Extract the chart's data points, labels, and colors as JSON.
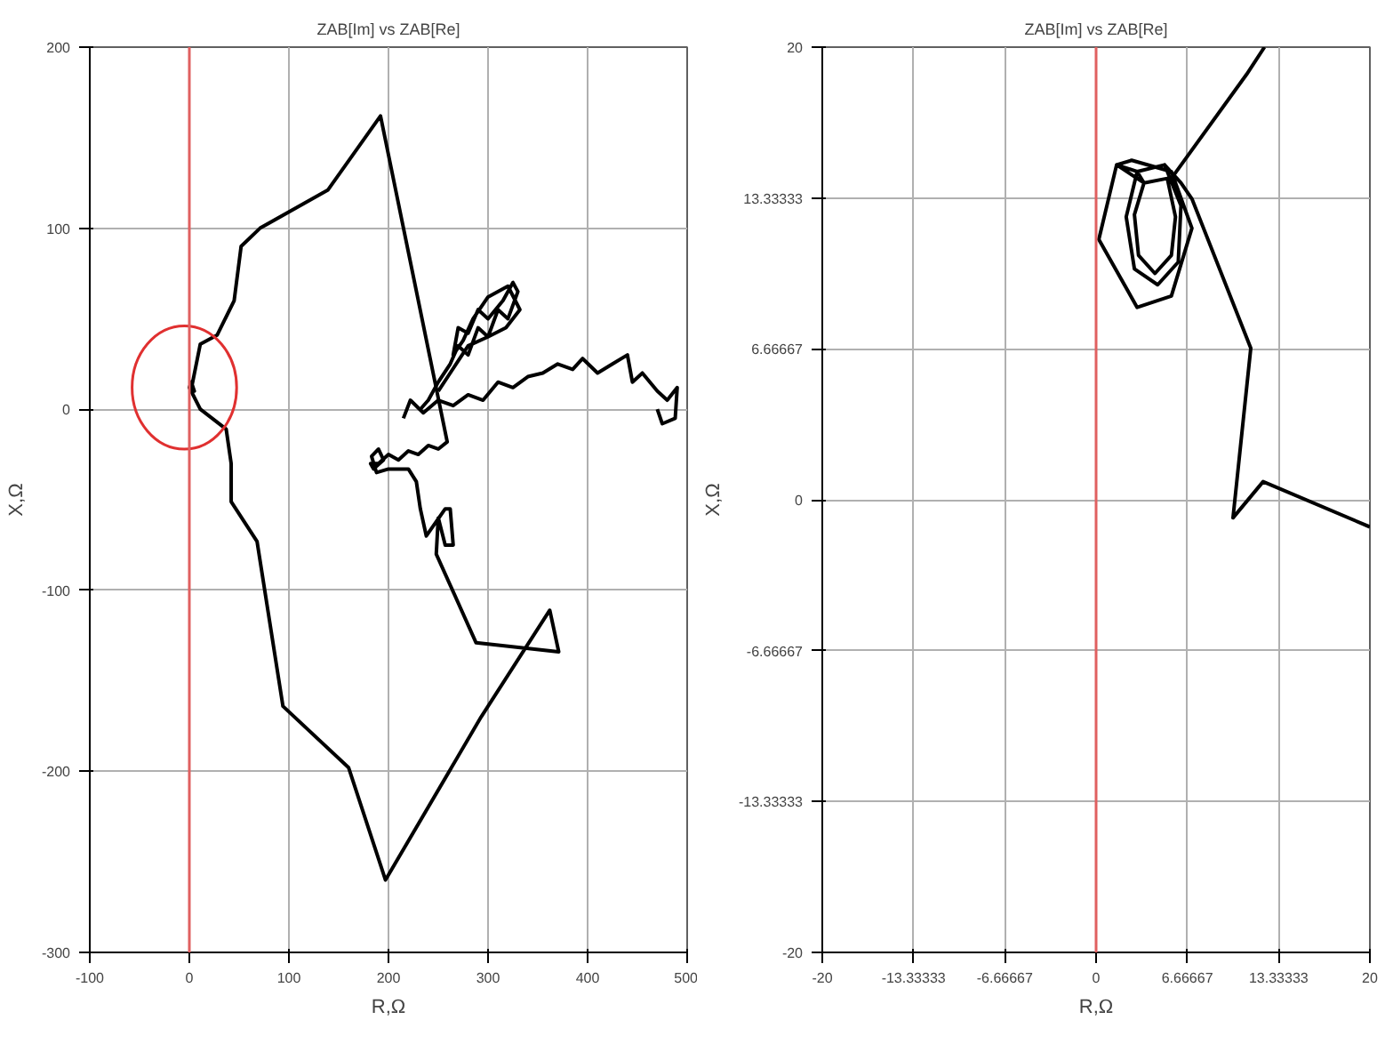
{
  "chart_data": [
    {
      "type": "line",
      "title": "ZAB[Im] vs ZAB[Re]",
      "xlabel": "R,Ω",
      "ylabel": "X,Ω",
      "xlim": [
        -100,
        500
      ],
      "ylim": [
        -300,
        200
      ],
      "xticks": [
        -100,
        0,
        100,
        200,
        300,
        400,
        500
      ],
      "yticks": [
        -300,
        -200,
        -100,
        0,
        100,
        200
      ],
      "grid": true,
      "ref_lines": [
        {
          "axis": "x",
          "value": 0,
          "color": "#e06060"
        }
      ],
      "series": [
        {
          "color": "#000000",
          "x": [
            0,
            3,
            11,
            28,
            45,
            52,
            71,
            139,
            192,
            259,
            250,
            240,
            230,
            220,
            210,
            200,
            190,
            182,
            185,
            195,
            190,
            183,
            188,
            200,
            220,
            228,
            232,
            238,
            257,
            262,
            265,
            257,
            250,
            248,
            288,
            371,
            362,
            293,
            197,
            160,
            94,
            68,
            42,
            42,
            37,
            11,
            0,
            2,
            5,
            1
          ],
          "values": [
            12,
            14,
            36,
            41,
            60,
            90,
            100,
            121,
            162,
            -18,
            -22,
            -20,
            -25,
            -23,
            -28,
            -25,
            -30,
            -30,
            -33,
            -28,
            -22,
            -26,
            -35,
            -33,
            -33,
            -40,
            -55,
            -70,
            -55,
            -55,
            -75,
            -75,
            -60,
            -80,
            -129,
            -134,
            -111,
            -170,
            -260,
            -198,
            -164,
            -73,
            -51,
            -30,
            -11,
            0,
            12,
            15,
            10,
            12
          ]
        },
        {
          "color": "#000000",
          "x": [
            215,
            222,
            235,
            250,
            265,
            280,
            295,
            310,
            325,
            340,
            355,
            370,
            385,
            395,
            410,
            425,
            440,
            445,
            455,
            470,
            480,
            490,
            488,
            475,
            470
          ],
          "values": [
            -5,
            5,
            -2,
            5,
            2,
            8,
            5,
            15,
            12,
            18,
            20,
            25,
            22,
            28,
            20,
            25,
            30,
            15,
            20,
            10,
            5,
            12,
            -5,
            -8,
            0
          ]
        },
        {
          "color": "#000000",
          "x": [
            232,
            240,
            250,
            262,
            270,
            280,
            290,
            300,
            310,
            320,
            330,
            325,
            315,
            300,
            290,
            280,
            270,
            265,
            275,
            285,
            300,
            320,
            332,
            318,
            300,
            280,
            262,
            250
          ],
          "values": [
            0,
            5,
            15,
            25,
            35,
            30,
            45,
            40,
            55,
            50,
            65,
            70,
            60,
            50,
            55,
            42,
            45,
            30,
            38,
            50,
            62,
            68,
            55,
            45,
            40,
            35,
            20,
            10
          ]
        }
      ]
    },
    {
      "type": "line",
      "title": "ZAB[Im] vs ZAB[Re]",
      "xlabel": "R,Ω",
      "ylabel": "X,Ω",
      "xlim": [
        -20,
        20
      ],
      "ylim": [
        -20,
        20
      ],
      "xticks": [
        -20,
        -13.33333,
        -6.66667,
        0,
        6.66667,
        13.33333,
        20
      ],
      "yticks": [
        -20,
        -13.33333,
        -6.66667,
        0,
        6.66667,
        13.33333,
        20
      ],
      "grid": true,
      "ref_lines": [
        {
          "axis": "x",
          "value": 0,
          "color": "#e06060"
        }
      ],
      "series": [
        {
          "color": "#000000",
          "x": [
            3,
            5,
            6.2,
            6,
            4.5,
            2.8,
            2.2,
            3,
            3.5,
            5.2,
            5.8,
            5.5,
            4.3,
            3.1,
            2.8,
            3.5,
            1.5,
            2.6,
            5.5,
            7,
            5.5,
            3,
            0.2,
            1.5,
            3,
            5,
            6.2,
            7,
            11.3,
            10,
            12.2,
            20
          ],
          "values": [
            14.5,
            14.8,
            13,
            10.5,
            9.5,
            10.2,
            12.5,
            14.5,
            14,
            14.2,
            12.5,
            10.8,
            10,
            10.8,
            12.6,
            14,
            14.8,
            15,
            14.5,
            12,
            9,
            8.5,
            11.5,
            14.8,
            14.5,
            14.8,
            14,
            13.3,
            6.7,
            -0.8,
            0.8,
            -1.2
          ]
        },
        {
          "color": "#000000",
          "x": [
            5.5,
            11,
            12.3
          ],
          "values": [
            14.2,
            18.8,
            20
          ]
        }
      ]
    }
  ]
}
